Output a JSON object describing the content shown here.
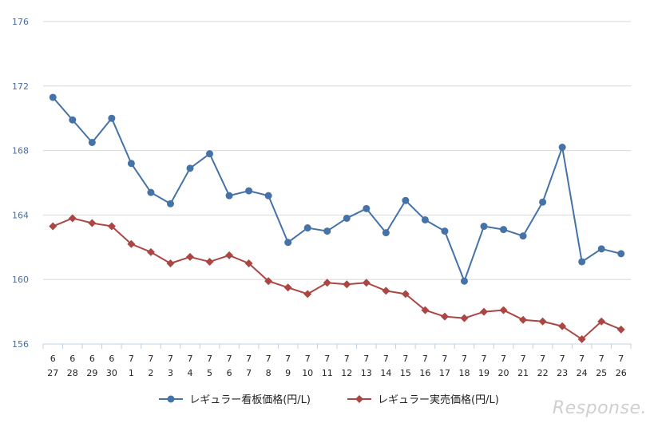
{
  "chart_data": {
    "type": "line",
    "title": "",
    "xlabel": "",
    "ylabel": "",
    "ylim": [
      156,
      176
    ],
    "yticks": [
      156,
      160,
      164,
      168,
      172,
      176
    ],
    "categories": [
      {
        "month": "6",
        "day": "27"
      },
      {
        "month": "6",
        "day": "28"
      },
      {
        "month": "6",
        "day": "29"
      },
      {
        "month": "6",
        "day": "30"
      },
      {
        "month": "7",
        "day": "1"
      },
      {
        "month": "7",
        "day": "2"
      },
      {
        "month": "7",
        "day": "3"
      },
      {
        "month": "7",
        "day": "4"
      },
      {
        "month": "7",
        "day": "5"
      },
      {
        "month": "7",
        "day": "6"
      },
      {
        "month": "7",
        "day": "7"
      },
      {
        "month": "7",
        "day": "8"
      },
      {
        "month": "7",
        "day": "9"
      },
      {
        "month": "7",
        "day": "10"
      },
      {
        "month": "7",
        "day": "11"
      },
      {
        "month": "7",
        "day": "12"
      },
      {
        "month": "7",
        "day": "13"
      },
      {
        "month": "7",
        "day": "14"
      },
      {
        "month": "7",
        "day": "15"
      },
      {
        "month": "7",
        "day": "16"
      },
      {
        "month": "7",
        "day": "17"
      },
      {
        "month": "7",
        "day": "18"
      },
      {
        "month": "7",
        "day": "19"
      },
      {
        "month": "7",
        "day": "20"
      },
      {
        "month": "7",
        "day": "21"
      },
      {
        "month": "7",
        "day": "22"
      },
      {
        "month": "7",
        "day": "23"
      },
      {
        "month": "7",
        "day": "24"
      },
      {
        "month": "7",
        "day": "25"
      },
      {
        "month": "7",
        "day": "26"
      }
    ],
    "series": [
      {
        "name": "レギュラー看板価格(円/L)",
        "color": "#4572a7",
        "marker": "circle",
        "values": [
          171.3,
          169.9,
          168.5,
          170.0,
          167.2,
          165.4,
          164.7,
          166.9,
          167.8,
          165.2,
          165.5,
          165.2,
          162.3,
          163.2,
          163.0,
          163.8,
          164.4,
          162.9,
          164.9,
          163.7,
          163.0,
          159.9,
          163.3,
          163.1,
          162.7,
          164.8,
          168.2,
          161.1,
          161.9,
          161.6
        ]
      },
      {
        "name": "レギュラー実売価格(円/L)",
        "color": "#aa4643",
        "marker": "diamond",
        "values": [
          163.3,
          163.8,
          163.5,
          163.3,
          162.2,
          161.7,
          161.0,
          161.4,
          161.1,
          161.5,
          161.0,
          159.9,
          159.5,
          159.1,
          159.8,
          159.7,
          159.8,
          159.3,
          159.1,
          158.1,
          157.7,
          157.6,
          158.0,
          158.1,
          157.5,
          157.4,
          157.1,
          156.3,
          157.4,
          156.9
        ]
      }
    ],
    "legend_position": "bottom",
    "grid": true
  },
  "watermark": "Response."
}
